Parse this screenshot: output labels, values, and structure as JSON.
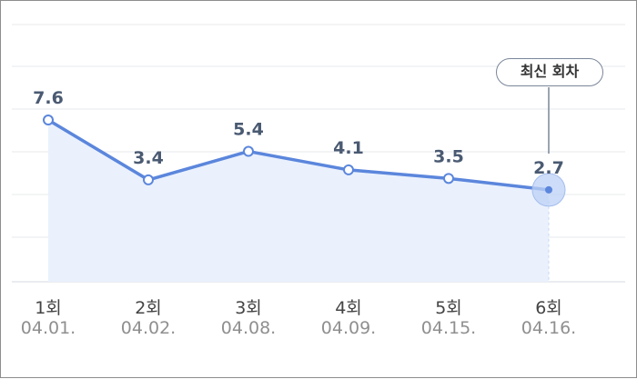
{
  "chart_data": {
    "type": "area",
    "categories": [
      "1회",
      "2회",
      "3회",
      "4회",
      "5회",
      "6회"
    ],
    "dates": [
      "04.01.",
      "04.02.",
      "04.08.",
      "04.09.",
      "04.15.",
      "04.16."
    ],
    "values": [
      7.6,
      3.4,
      5.4,
      4.1,
      3.5,
      2.7
    ],
    "value_labels": [
      "7.6",
      "3.4",
      "5.4",
      "4.1",
      "3.5",
      "2.7"
    ],
    "ylim": [
      -3.75,
      14.3
    ],
    "grid": true,
    "highlight_index": 5,
    "highlight_label": "최신 회차",
    "colors": {
      "line": "#5b86dc",
      "fill": "#eaf1fd",
      "grid": "#e7e9ed",
      "value_text": "#4a5a72"
    }
  }
}
